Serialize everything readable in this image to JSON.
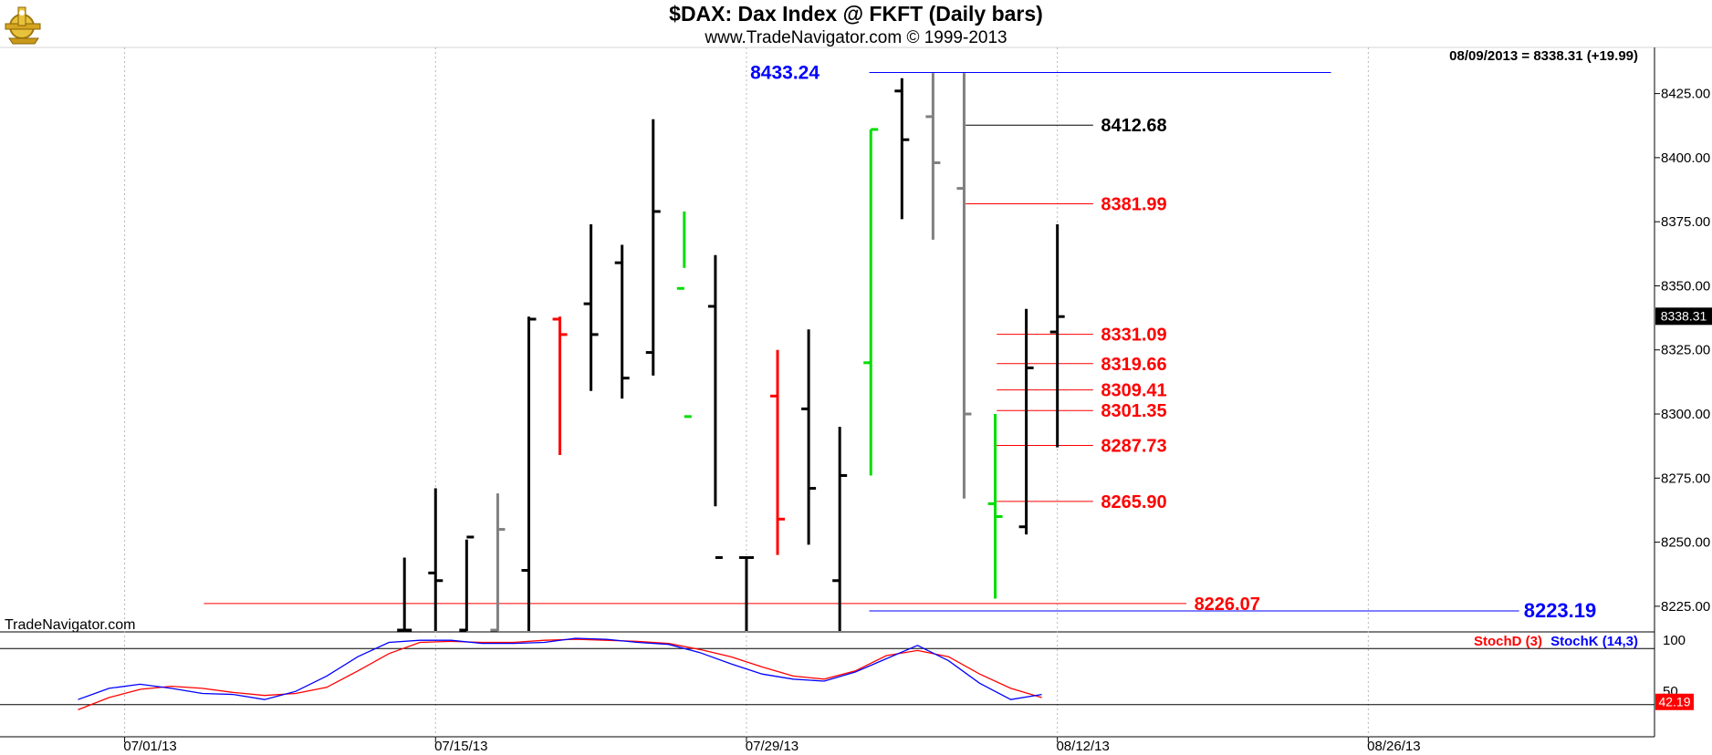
{
  "header": {
    "title": "$DAX:  Dax Index @ FKFT  (Daily bars)",
    "subtitle": "www.TradeNavigator.com © 1999-2013",
    "last_info": "08/09/2013 = 8338.31 (+19.99)",
    "watermark": "TradeNavigator.com"
  },
  "colors": {
    "up": "#000000",
    "down": "#808080",
    "green": "#00dd00",
    "red": "#ff0000",
    "blue": "#0000ff"
  },
  "chart_data": {
    "type": "ohlc",
    "price_axis": {
      "min": 8215,
      "max": 8443,
      "ticks": [
        "8225.00",
        "8250.00",
        "8275.00",
        "8300.00",
        "8325.00",
        "8350.00",
        "8375.00",
        "8400.00",
        "8425.00"
      ],
      "tick_values": [
        8225,
        8250,
        8275,
        8300,
        8325,
        8350,
        8375,
        8400,
        8425
      ],
      "last_price_label": "8338.31",
      "last_price": 8338.31
    },
    "x_labels": [
      {
        "label": "07/01/13",
        "index": 1
      },
      {
        "label": "07/15/13",
        "index": 11
      },
      {
        "label": "07/29/13",
        "index": 21
      },
      {
        "label": "08/12/13",
        "index": 31
      },
      {
        "label": "08/26/13",
        "index": 41
      }
    ],
    "bars": [
      {
        "i": 10,
        "o": 8212,
        "h": 8244,
        "l": 8210,
        "c": 8212,
        "color": "up"
      },
      {
        "i": 11,
        "o": 8238,
        "h": 8271,
        "l": 8210,
        "c": 8235,
        "color": "up"
      },
      {
        "i": 12,
        "o": 8212,
        "h": 8251,
        "l": 8210,
        "c": 8252,
        "color": "up"
      },
      {
        "i": 13,
        "o": 8212,
        "h": 8269,
        "l": 8211,
        "c": 8255,
        "color": "down"
      },
      {
        "i": 14,
        "o": 8239,
        "h": 8338,
        "l": 8212,
        "c": 8337,
        "color": "up"
      },
      {
        "i": 15,
        "o": 8337,
        "h": 8338,
        "l": 8284,
        "c": 8331,
        "color": "red"
      },
      {
        "i": 16,
        "o": 8343,
        "h": 8374,
        "l": 8309,
        "c": 8331,
        "color": "up"
      },
      {
        "i": 17,
        "o": 8359,
        "h": 8366,
        "l": 8306,
        "c": 8314,
        "color": "up"
      },
      {
        "i": 18,
        "o": 8324,
        "h": 8415,
        "l": 8315,
        "c": 8379,
        "color": "up"
      },
      {
        "i": 19,
        "o": 8349,
        "h": 8379,
        "l": 8357,
        "c": 8299,
        "color": "green"
      },
      {
        "i": 20,
        "o": 8342,
        "h": 8362,
        "l": 8264,
        "c": 8244,
        "color": "up"
      },
      {
        "i": 21,
        "o": 8244,
        "h": 8244,
        "l": 8212,
        "c": 8244,
        "color": "up"
      },
      {
        "i": 22,
        "o": 8307,
        "h": 8325,
        "l": 8245,
        "c": 8259,
        "color": "red"
      },
      {
        "i": 23,
        "o": 8302,
        "h": 8333,
        "l": 8249,
        "c": 8271,
        "color": "up"
      },
      {
        "i": 24,
        "o": 8235,
        "h": 8295,
        "l": 8211,
        "c": 8276,
        "color": "up"
      },
      {
        "i": 25,
        "o": 8320,
        "h": 8411,
        "l": 8276,
        "c": 8411,
        "color": "green"
      },
      {
        "i": 26,
        "o": 8426,
        "h": 8431,
        "l": 8376,
        "c": 8407,
        "color": "up"
      },
      {
        "i": 27,
        "o": 8416,
        "h": 8433,
        "l": 8368,
        "c": 8398,
        "color": "down"
      },
      {
        "i": 28,
        "o": 8388,
        "h": 8433,
        "l": 8267,
        "c": 8300,
        "color": "down"
      },
      {
        "i": 29,
        "o": 8265,
        "h": 8300,
        "l": 8228,
        "c": 8260,
        "color": "green"
      },
      {
        "i": 30,
        "o": 8256,
        "h": 8341,
        "l": 8253,
        "c": 8318,
        "color": "up"
      },
      {
        "i": 31,
        "o": 8332,
        "h": 8374,
        "l": 8287,
        "c": 8338,
        "color": "up"
      }
    ],
    "levels": [
      {
        "label": "8433.24",
        "value": 8433.24,
        "color": "blue",
        "from": 24.95,
        "to": 39.8,
        "label_at": 23.35,
        "anchor": "end",
        "size": 21
      },
      {
        "label": "8412.68",
        "value": 8412.68,
        "color": "black",
        "from": 28.05,
        "to": 32.15,
        "label_at": 32.4,
        "anchor": "start",
        "size": 20
      },
      {
        "label": "8381.99",
        "value": 8381.99,
        "color": "red",
        "from": 28.05,
        "to": 32.15,
        "label_at": 32.4,
        "anchor": "start",
        "size": 20
      },
      {
        "label": "8331.09",
        "value": 8331.09,
        "color": "red",
        "from": 29.05,
        "to": 32.15,
        "label_at": 32.4,
        "anchor": "start",
        "size": 20
      },
      {
        "label": "8319.66",
        "value": 8319.66,
        "color": "red",
        "from": 29.05,
        "to": 32.15,
        "label_at": 32.4,
        "anchor": "start",
        "size": 20
      },
      {
        "label": "8309.41",
        "value": 8309.41,
        "color": "red",
        "from": 29.05,
        "to": 32.15,
        "label_at": 32.4,
        "anchor": "start",
        "size": 20
      },
      {
        "label": "8301.35",
        "value": 8301.35,
        "color": "red",
        "from": 29.05,
        "to": 32.15,
        "label_at": 32.4,
        "anchor": "start",
        "size": 20
      },
      {
        "label": "8287.73",
        "value": 8287.73,
        "color": "red",
        "from": 29.05,
        "to": 32.15,
        "label_at": 32.4,
        "anchor": "start",
        "size": 20
      },
      {
        "label": "8265.90",
        "value": 8265.9,
        "color": "red",
        "from": 29.05,
        "to": 32.15,
        "label_at": 32.4,
        "anchor": "start",
        "size": 20
      },
      {
        "label": "8226.07",
        "value": 8226.07,
        "color": "red",
        "from": 3.55,
        "to": 35.15,
        "label_at": 35.4,
        "anchor": "start",
        "size": 20
      },
      {
        "label": "8223.19",
        "value": 8223.19,
        "color": "blue",
        "from": 24.95,
        "to": 45.85,
        "label_at": 46.0,
        "anchor": "start",
        "size": 22
      }
    ],
    "indicator": {
      "legend_d": "StochD (3)",
      "legend_k": "StochK (14,3)",
      "top_label": "100",
      "mid_label": "50",
      "last_label": "42.19",
      "last_value": 42.19,
      "stoch_k": [
        {
          "i": -0.5,
          "v": 40
        },
        {
          "i": 0.5,
          "v": 51
        },
        {
          "i": 1.5,
          "v": 55
        },
        {
          "i": 2.5,
          "v": 51
        },
        {
          "i": 3.5,
          "v": 46
        },
        {
          "i": 4.5,
          "v": 45
        },
        {
          "i": 5.5,
          "v": 40
        },
        {
          "i": 6.5,
          "v": 48
        },
        {
          "i": 7.5,
          "v": 63
        },
        {
          "i": 8.5,
          "v": 82
        },
        {
          "i": 9.5,
          "v": 96
        },
        {
          "i": 10.5,
          "v": 98
        },
        {
          "i": 11.5,
          "v": 98
        },
        {
          "i": 12.5,
          "v": 95
        },
        {
          "i": 13.5,
          "v": 95
        },
        {
          "i": 14.5,
          "v": 96
        },
        {
          "i": 15.5,
          "v": 100
        },
        {
          "i": 16.5,
          "v": 99
        },
        {
          "i": 17.5,
          "v": 96
        },
        {
          "i": 18.5,
          "v": 94
        },
        {
          "i": 19.5,
          "v": 86
        },
        {
          "i": 20.5,
          "v": 75
        },
        {
          "i": 21.5,
          "v": 65
        },
        {
          "i": 22.5,
          "v": 60
        },
        {
          "i": 23.5,
          "v": 58
        },
        {
          "i": 24.5,
          "v": 67
        },
        {
          "i": 25.5,
          "v": 80
        },
        {
          "i": 26.5,
          "v": 93
        },
        {
          "i": 27.5,
          "v": 78
        },
        {
          "i": 28.5,
          "v": 56
        },
        {
          "i": 29.5,
          "v": 40
        },
        {
          "i": 30.5,
          "v": 45
        }
      ],
      "stoch_d": [
        {
          "i": -0.5,
          "v": 30
        },
        {
          "i": 0.5,
          "v": 42
        },
        {
          "i": 1.5,
          "v": 50
        },
        {
          "i": 2.5,
          "v": 53
        },
        {
          "i": 3.5,
          "v": 51
        },
        {
          "i": 4.5,
          "v": 47
        },
        {
          "i": 5.5,
          "v": 44
        },
        {
          "i": 6.5,
          "v": 46
        },
        {
          "i": 7.5,
          "v": 52
        },
        {
          "i": 8.5,
          "v": 68
        },
        {
          "i": 9.5,
          "v": 85
        },
        {
          "i": 10.5,
          "v": 96
        },
        {
          "i": 11.5,
          "v": 97
        },
        {
          "i": 12.5,
          "v": 96
        },
        {
          "i": 13.5,
          "v": 96
        },
        {
          "i": 14.5,
          "v": 98
        },
        {
          "i": 15.5,
          "v": 99
        },
        {
          "i": 16.5,
          "v": 98
        },
        {
          "i": 17.5,
          "v": 97
        },
        {
          "i": 18.5,
          "v": 95
        },
        {
          "i": 19.5,
          "v": 89
        },
        {
          "i": 20.5,
          "v": 82
        },
        {
          "i": 21.5,
          "v": 72
        },
        {
          "i": 22.5,
          "v": 63
        },
        {
          "i": 23.5,
          "v": 60
        },
        {
          "i": 24.5,
          "v": 68
        },
        {
          "i": 25.5,
          "v": 83
        },
        {
          "i": 26.5,
          "v": 88
        },
        {
          "i": 27.5,
          "v": 82
        },
        {
          "i": 28.5,
          "v": 65
        },
        {
          "i": 29.5,
          "v": 51
        },
        {
          "i": 30.5,
          "v": 42
        }
      ]
    }
  }
}
